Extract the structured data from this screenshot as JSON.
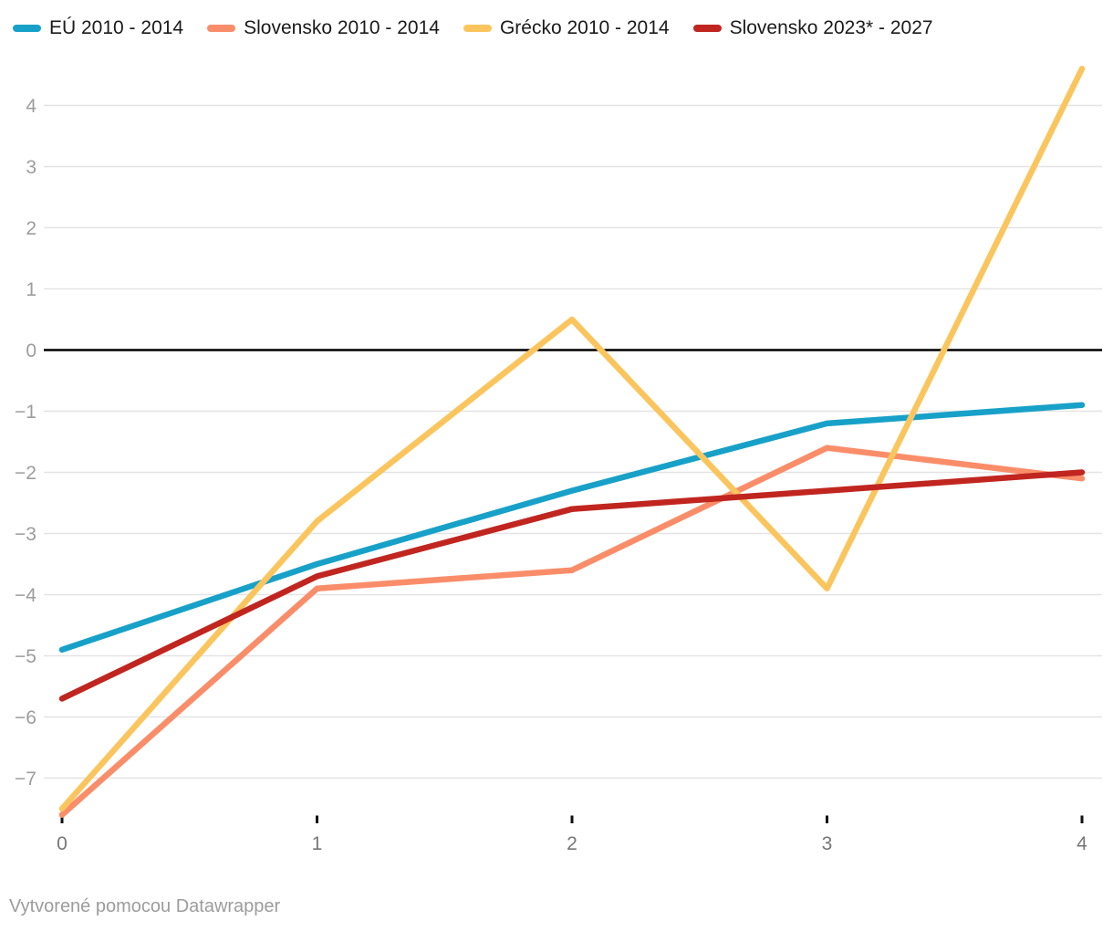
{
  "legend": {
    "items": [
      {
        "label": "EÚ 2010 - 2014"
      },
      {
        "label": "Slovensko 2010 - 2014"
      },
      {
        "label": "Grécko 2010 - 2014"
      },
      {
        "label": "Slovensko 2023* - 2027"
      }
    ]
  },
  "footer": {
    "text": "Vytvorené pomocou Datawrapper"
  },
  "colors": {
    "background": "#ffffff",
    "grid": "#e4e4e4",
    "zero_line": "#000000",
    "axis_tick": "#111111",
    "y_label": "#9d9d9d",
    "x_label": "#767676",
    "legend_text": "#1a1a1a",
    "footer_text": "#9c9c9c"
  },
  "chart_data": {
    "type": "line",
    "title": "",
    "xlabel": "",
    "ylabel": "",
    "x": [
      0,
      1,
      2,
      3,
      4
    ],
    "x_tick_labels": [
      "0",
      "1",
      "2",
      "3",
      "4"
    ],
    "y_ticks": [
      4,
      3,
      2,
      1,
      0,
      -1,
      -2,
      -3,
      -4,
      -5,
      -6,
      -7
    ],
    "y_tick_labels": [
      "4",
      "3",
      "2",
      "1",
      "0",
      "−1",
      "−2",
      "−3",
      "−4",
      "−5",
      "−6",
      "−7"
    ],
    "ylim": [
      -7.65,
      4.72
    ],
    "xlim": [
      0,
      4
    ],
    "grid": "horizontal",
    "zero_line": true,
    "legend_position": "top",
    "series": [
      {
        "name": "EÚ 2010 - 2014",
        "slug": "eu-2010-2014",
        "color": "#18a1c8",
        "values": [
          -4.9,
          -3.5,
          -2.3,
          -1.2,
          -0.9
        ]
      },
      {
        "name": "Slovensko 2010 - 2014",
        "slug": "slovensko-2010-2014",
        "color": "#fa8d69",
        "values": [
          -7.6,
          -3.9,
          -3.6,
          -1.6,
          -2.1
        ]
      },
      {
        "name": "Grécko 2010 - 2014",
        "slug": "grecko-2010-2014",
        "color": "#fbc55e",
        "values": [
          -7.5,
          -2.8,
          0.5,
          -3.9,
          4.6
        ]
      },
      {
        "name": "Slovensko 2023* - 2027",
        "slug": "slovensko-2023-2027",
        "color": "#c0261f",
        "values": [
          -5.7,
          -3.7,
          -2.6,
          -2.3,
          -2.0
        ]
      }
    ]
  }
}
